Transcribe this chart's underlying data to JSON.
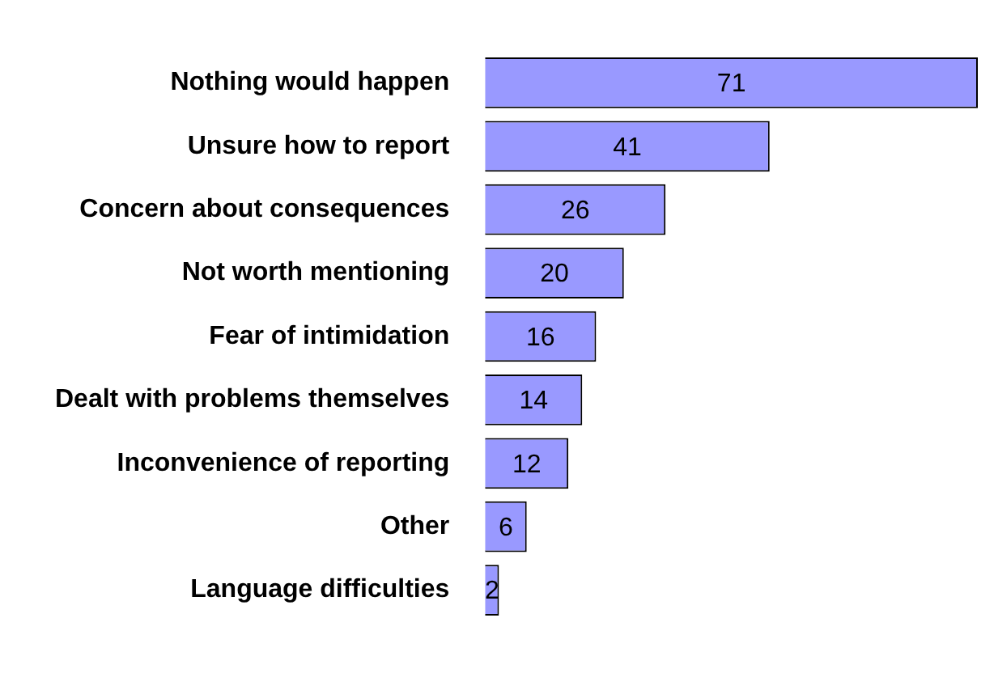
{
  "chart_data": {
    "type": "bar",
    "orientation": "horizontal",
    "categories": [
      "Nothing would happen",
      "Unsure how to report",
      "Concern about consequences",
      "Not worth mentioning",
      "Fear of intimidation",
      "Dealt with problems themselves",
      "Inconvenience of reporting",
      "Other",
      "Language difficulties"
    ],
    "values": [
      71,
      41,
      26,
      20,
      16,
      14,
      12,
      6,
      2
    ],
    "color": "#9999ff",
    "data_labels": true
  }
}
